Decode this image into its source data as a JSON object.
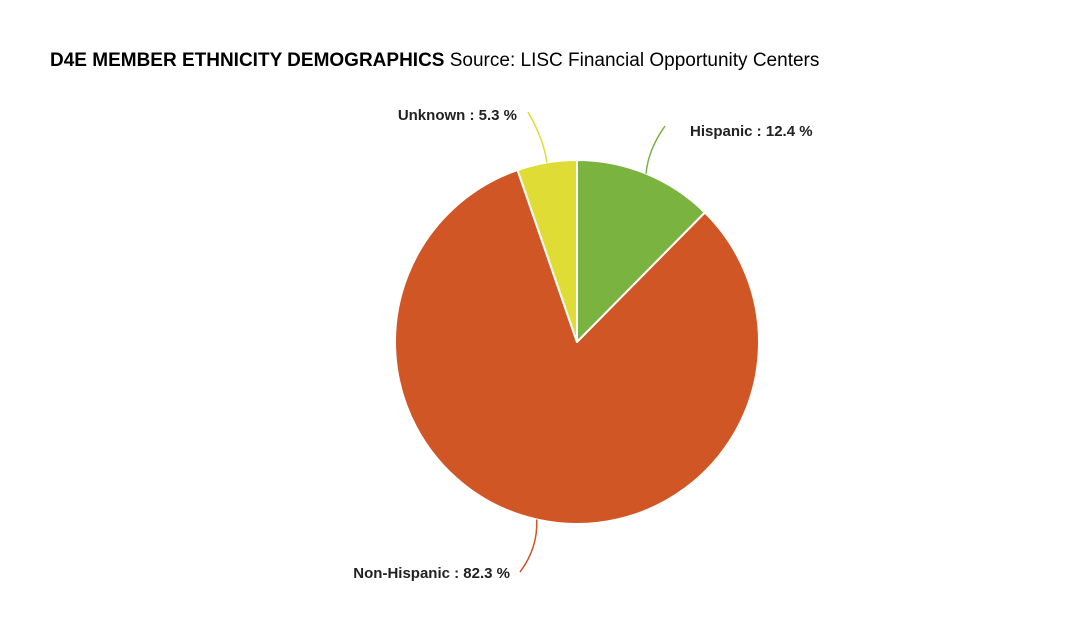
{
  "title": {
    "bold_text": "D4E MEMBER ETHNICITY DEMOGRAPHICS",
    "source_text": "Source: LISC Financial Opportunity Centers"
  },
  "chart_data": {
    "type": "pie",
    "slices": [
      {
        "label": "Hispanic",
        "value": 12.4,
        "display": "Hispanic : 12.4 %",
        "color": "#7bb341"
      },
      {
        "label": "Non-Hispanic",
        "value": 82.3,
        "display": "Non-Hispanic : 82.3 %",
        "color": "#d15626"
      },
      {
        "label": "Unknown",
        "value": 5.3,
        "display": "Unknown : 5.3 %",
        "color": "#dedc35"
      }
    ],
    "start": "12 o'clock",
    "direction": "clockwise"
  }
}
